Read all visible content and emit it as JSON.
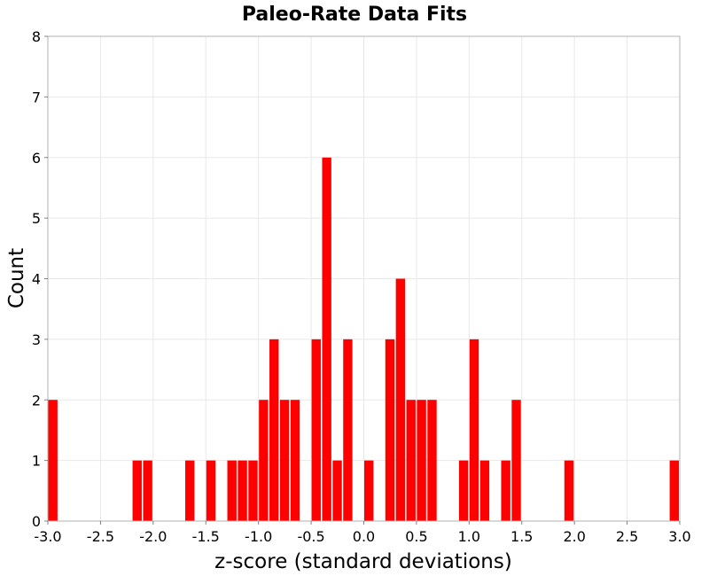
{
  "chart_data": {
    "type": "bar",
    "title": "Paleo-Rate Data Fits",
    "xlabel": "z-score (standard deviations)",
    "ylabel": "Count",
    "xlim": [
      -3.0,
      3.0
    ],
    "ylim": [
      0,
      8
    ],
    "bin_width": 0.1,
    "xticks": [
      "-3.0",
      "-2.5",
      "-2.0",
      "-1.5",
      "-1.0",
      "-0.5",
      "0.0",
      "0.5",
      "1.0",
      "1.5",
      "2.0",
      "2.5",
      "3.0"
    ],
    "yticks": [
      "0",
      "1",
      "2",
      "3",
      "4",
      "5",
      "6",
      "7",
      "8"
    ],
    "bar_color": "#ff0000",
    "bins": [
      {
        "x": -3.0,
        "count": 2
      },
      {
        "x": -2.2,
        "count": 1
      },
      {
        "x": -2.1,
        "count": 1
      },
      {
        "x": -1.7,
        "count": 1
      },
      {
        "x": -1.5,
        "count": 1
      },
      {
        "x": -1.3,
        "count": 1
      },
      {
        "x": -1.2,
        "count": 1
      },
      {
        "x": -1.1,
        "count": 1
      },
      {
        "x": -1.0,
        "count": 2
      },
      {
        "x": -0.9,
        "count": 3
      },
      {
        "x": -0.8,
        "count": 2
      },
      {
        "x": -0.7,
        "count": 2
      },
      {
        "x": -0.5,
        "count": 3
      },
      {
        "x": -0.4,
        "count": 6
      },
      {
        "x": -0.3,
        "count": 1
      },
      {
        "x": -0.2,
        "count": 3
      },
      {
        "x": 0.0,
        "count": 1
      },
      {
        "x": 0.2,
        "count": 3
      },
      {
        "x": 0.3,
        "count": 4
      },
      {
        "x": 0.4,
        "count": 2
      },
      {
        "x": 0.5,
        "count": 2
      },
      {
        "x": 0.6,
        "count": 2
      },
      {
        "x": 0.9,
        "count": 1
      },
      {
        "x": 1.0,
        "count": 3
      },
      {
        "x": 1.1,
        "count": 1
      },
      {
        "x": 1.3,
        "count": 1
      },
      {
        "x": 1.4,
        "count": 2
      },
      {
        "x": 1.9,
        "count": 1
      },
      {
        "x": 2.9,
        "count": 1
      }
    ]
  }
}
